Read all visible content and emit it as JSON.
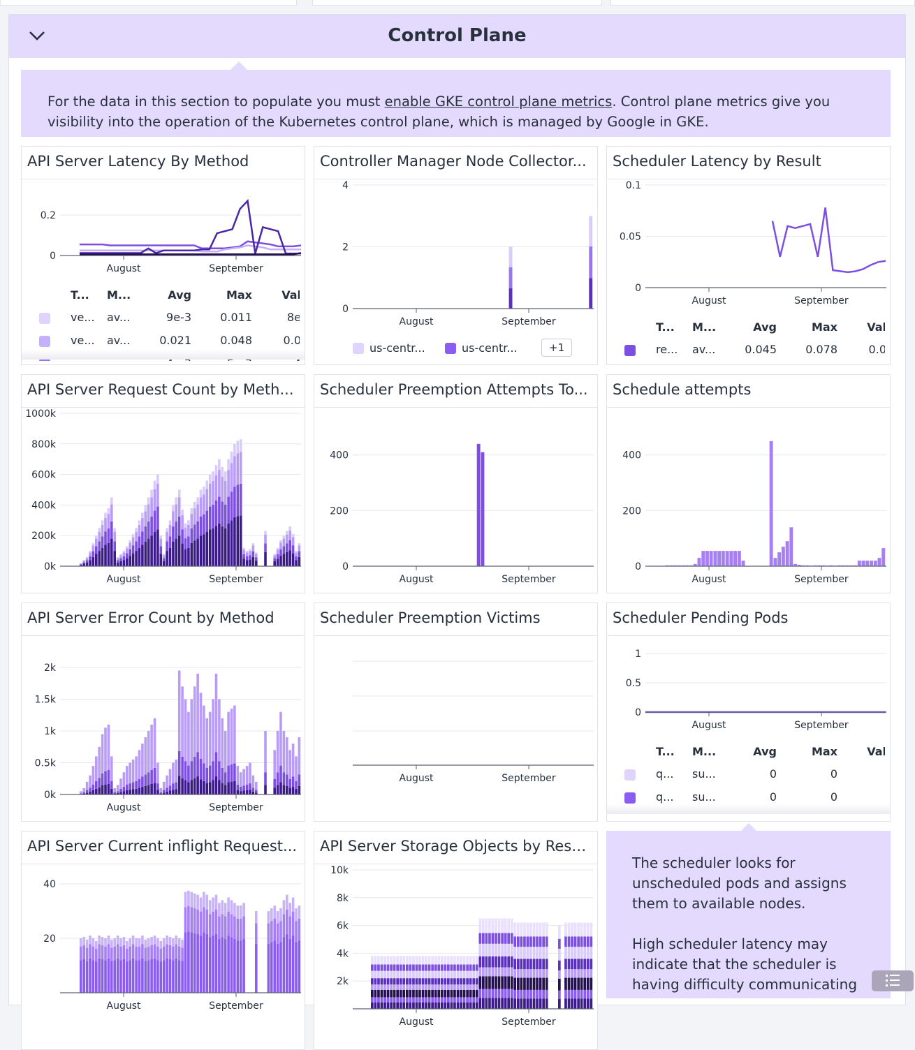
{
  "section": {
    "title": "Control Plane",
    "collapse_icon": "chevron-down-icon",
    "info_prefix": "For the data in this section to populate you must ",
    "info_link": "enable GKE control plane metrics",
    "info_suffix": ". Control plane metrics give you visibility into the operation of the Kubernetes control plane, which is managed by Google in GKE."
  },
  "colors": {
    "header_bg": "#e4dafd",
    "accent": "#7c4fe0",
    "dark": "#3b1a8a",
    "light": "#d9ccfb"
  },
  "time_ticks": [
    "August",
    "September"
  ],
  "legend_headers": [
    "T...",
    "M...",
    "Avg",
    "Max",
    "Val"
  ],
  "chart_data": [
    {
      "title": "API Server Latency By Method",
      "type": "line",
      "yticks": [
        {
          "v": 0,
          "label": "0"
        },
        {
          "v": 0.2,
          "label": "0.2"
        }
      ],
      "ylim": [
        0,
        0.28
      ],
      "series": [
        {
          "color": "#7c4fe0",
          "values": [
            0.055,
            0.055,
            0.055,
            0.055,
            0.05,
            0.05,
            0.05,
            0.05,
            0.05,
            0.05,
            0.05,
            0.05,
            0.05,
            0.05,
            0.05,
            0.05,
            0.035,
            0.035,
            0.035,
            0.035,
            0.04,
            0.045,
            0.07,
            0.065,
            0.06,
            0.055,
            0.045,
            0.045,
            0.045,
            0.05
          ]
        },
        {
          "color": "#c4b0f8",
          "values": [
            0.025,
            0.025,
            0.025,
            0.025,
            0.025,
            0.025,
            0.025,
            0.025,
            0.025,
            0.025,
            0.025,
            0.025,
            0.025,
            0.025,
            0.025,
            0.025,
            0.02,
            0.02,
            0.02,
            0.03,
            0.035,
            0.04,
            0.05,
            0.045,
            0.04,
            0.03,
            0.03,
            0.03,
            0.03,
            0.03
          ]
        },
        {
          "color": "#4a25a8",
          "values": [
            0.012,
            0.012,
            0.012,
            0.012,
            0.012,
            0.012,
            0.012,
            0.012,
            0.012,
            0.035,
            0.012,
            0.025,
            0.025,
            0.025,
            0.025,
            0.025,
            0.03,
            0.03,
            0.11,
            0.12,
            0.13,
            0.23,
            0.27,
            0.01,
            0.14,
            0.13,
            0.12,
            0.01,
            0.01,
            0.01
          ]
        },
        {
          "color": "#24104f",
          "values": [
            0.006,
            0.006,
            0.006,
            0.006,
            0.006,
            0.006,
            0.006,
            0.006,
            0.006,
            0.006,
            0.006,
            0.006,
            0.006,
            0.006,
            0.006,
            0.006,
            0.006,
            0.006,
            0.006,
            0.006,
            0.006,
            0.006,
            0.006,
            0.006,
            0.006,
            0.006,
            0.006,
            0.006,
            0.006,
            0.012
          ]
        }
      ],
      "legend": [
        {
          "color": "#e0d4fc",
          "t": "ve...",
          "m": "av...",
          "avg": "9e-3",
          "max": "0.011",
          "val": "8e"
        },
        {
          "color": "#c4b0f8",
          "t": "ve...",
          "m": "av...",
          "avg": "0.021",
          "max": "0.048",
          "val": "0.0"
        },
        {
          "color": "#9b74f0",
          "t": "...",
          "m": "...",
          "avg": "4e-3",
          "max": "5e-3",
          "val": "4"
        }
      ]
    },
    {
      "title": "Controller Manager Node Collector...",
      "type": "stacked-bar",
      "yticks": [
        {
          "v": 0,
          "label": "0"
        },
        {
          "v": 2,
          "label": "2"
        },
        {
          "v": 4,
          "label": "4"
        }
      ],
      "ylim": [
        0,
        4
      ],
      "totals": [
        0,
        0,
        0,
        0,
        0,
        0,
        0,
        0,
        0,
        0,
        0,
        0,
        0,
        0,
        0,
        0,
        0,
        0,
        0,
        0,
        0,
        0,
        0,
        0,
        0,
        0,
        0,
        0,
        0,
        0,
        0,
        0,
        0,
        0,
        0,
        0,
        0,
        0,
        0,
        2,
        0,
        0,
        0,
        0,
        0,
        0,
        0,
        0,
        0,
        0,
        0,
        0,
        0,
        0,
        0,
        0,
        0,
        0,
        0,
        3
      ],
      "shares": [
        0.33,
        0.34,
        0.33
      ],
      "colors": [
        "#5a2fc0",
        "#9b74f0",
        "#d9ccfb"
      ],
      "legend_chips": [
        {
          "color": "#e0d4fc",
          "label": "us-centr..."
        },
        {
          "color": "#8b5cf0",
          "label": "us-centr..."
        }
      ],
      "more_label": "+1"
    },
    {
      "title": "Scheduler Latency by Result",
      "type": "line",
      "yticks": [
        {
          "v": 0,
          "label": "0"
        },
        {
          "v": 0.05,
          "label": "0.05"
        },
        {
          "v": 0.1,
          "label": "0.1"
        }
      ],
      "ylim": [
        0,
        0.1
      ],
      "series": [
        {
          "color": "#7c4fe0",
          "values": [
            0.065,
            0.03,
            0.06,
            0.058,
            0.06,
            0.062,
            0.03,
            0.078,
            0.017,
            0.016,
            0.015,
            0.016,
            0.018,
            0.022,
            0.025,
            0.026
          ]
        }
      ],
      "legend": [
        {
          "color": "#7c4fe0",
          "t": "re...",
          "m": "av...",
          "avg": "0.045",
          "max": "0.078",
          "val": "0.0"
        }
      ]
    },
    {
      "title": "API Server Request Count by Meth...",
      "type": "stacked-bar",
      "yticks": [
        {
          "v": 0,
          "label": "0k"
        },
        {
          "v": 200,
          "label": "200k"
        },
        {
          "v": 400,
          "label": "400k"
        },
        {
          "v": 600,
          "label": "600k"
        },
        {
          "v": 800,
          "label": "800k"
        },
        {
          "v": 1000,
          "label": "1000k"
        }
      ],
      "ylim": [
        0,
        1000
      ],
      "totals": [
        20,
        40,
        60,
        100,
        150,
        200,
        250,
        300,
        350,
        380,
        450,
        250,
        60,
        80,
        100,
        130,
        170,
        210,
        250,
        300,
        350,
        400,
        450,
        500,
        560,
        600,
        200,
        80,
        250,
        300,
        400,
        450,
        500,
        370,
        280,
        300,
        380,
        420,
        450,
        500,
        520,
        560,
        600,
        620,
        660,
        700,
        650,
        620,
        700,
        750,
        800,
        820,
        830,
        120,
        100,
        110,
        150,
        90,
        null,
        null,
        230,
        null,
        null,
        80,
        120,
        170,
        200,
        230,
        260,
        210,
        100,
        150
      ],
      "shares": [
        0.4,
        0.25,
        0.25,
        0.1
      ],
      "colors": [
        "#3b1a8a",
        "#7c4fe0",
        "#b89cf5",
        "#d9ccfb"
      ]
    },
    {
      "title": "Scheduler Preemption Attempts To...",
      "type": "bar",
      "yticks": [
        {
          "v": 0,
          "label": "0"
        },
        {
          "v": 200,
          "label": "200"
        },
        {
          "v": 400,
          "label": "400"
        }
      ],
      "ylim": [
        0,
        550
      ],
      "totals": [
        0,
        0,
        0,
        0,
        0,
        0,
        0,
        0,
        0,
        0,
        0,
        0,
        0,
        0,
        0,
        0,
        0,
        0,
        0,
        0,
        0,
        0,
        0,
        0,
        0,
        0,
        0,
        0,
        0,
        0,
        0,
        440,
        410,
        0,
        0,
        0,
        0,
        0,
        0,
        0,
        0,
        0,
        0,
        0,
        0,
        0,
        0,
        0,
        0,
        0,
        0,
        0,
        0,
        0,
        0,
        0,
        0,
        0,
        0,
        0
      ],
      "shares": [
        1
      ],
      "colors": [
        "#7c4fe0"
      ]
    },
    {
      "title": "Schedule attempts",
      "type": "bar",
      "yticks": [
        {
          "v": 0,
          "label": "0"
        },
        {
          "v": 200,
          "label": "200"
        },
        {
          "v": 400,
          "label": "400"
        }
      ],
      "ylim": [
        0,
        550
      ],
      "totals": [
        0,
        0,
        0,
        0,
        0,
        3,
        3,
        3,
        3,
        3,
        3,
        3,
        8,
        30,
        55,
        55,
        55,
        55,
        55,
        55,
        55,
        55,
        55,
        55,
        20,
        0,
        0,
        0,
        0,
        0,
        0,
        450,
        30,
        50,
        70,
        90,
        140,
        8,
        5,
        3,
        3,
        2,
        3,
        3,
        3,
        2,
        3,
        2,
        3,
        3,
        3,
        3,
        3,
        20,
        20,
        20,
        20,
        20,
        30,
        65
      ],
      "shares": [
        1
      ],
      "colors": [
        "#a57ff3"
      ]
    },
    {
      "title": "API Server Error Count by Method",
      "type": "stacked-bar",
      "yticks": [
        {
          "v": 0,
          "label": "0k"
        },
        {
          "v": 0.5,
          "label": "0.5k"
        },
        {
          "v": 1,
          "label": "1k"
        },
        {
          "v": 1.5,
          "label": "1.5k"
        },
        {
          "v": 2,
          "label": "2k"
        }
      ],
      "ylim": [
        0,
        2.4
      ],
      "totals": [
        0.05,
        0.1,
        0.2,
        0.3,
        0.45,
        0.6,
        0.75,
        0.95,
        1.05,
        1.1,
        0.6,
        0.1,
        0.15,
        0.25,
        0.35,
        0.45,
        0.5,
        0.55,
        0.6,
        0.7,
        0.8,
        0.9,
        1.0,
        1.1,
        1.2,
        0.5,
        0.1,
        0.2,
        0.3,
        0.4,
        0.5,
        0.55,
        1.95,
        1.7,
        1.5,
        1.3,
        1.5,
        1.7,
        1.9,
        1.6,
        1.4,
        1.2,
        1.3,
        1.5,
        1.9,
        1.5,
        1.2,
        1.0,
        1.3,
        1.35,
        1.4,
        0.45,
        0.35,
        0.4,
        0.45,
        0.5,
        0.3,
        0.2,
        null,
        null,
        1.0,
        null,
        null,
        0.7,
        1.0,
        1.3,
        1.0,
        0.9,
        0.7,
        0.8,
        0.6,
        0.9
      ],
      "shares": [
        0.15,
        0.2,
        0.65
      ],
      "colors": [
        "#3b1a8a",
        "#7c4fe0",
        "#b89cf5"
      ]
    },
    {
      "title": "Scheduler Preemption Victims",
      "type": "line",
      "yticks": [],
      "ylim": [
        0,
        1
      ],
      "series": []
    },
    {
      "title": "Scheduler Pending Pods",
      "type": "line",
      "yticks": [
        {
          "v": 0,
          "label": "0"
        },
        {
          "v": 0.5,
          "label": "0.5"
        },
        {
          "v": 1,
          "label": "1"
        }
      ],
      "ylim": [
        0,
        1
      ],
      "series": [
        {
          "color": "#7c4fe0",
          "values": [
            0,
            0
          ]
        }
      ],
      "legend": [
        {
          "color": "#e0d4fc",
          "t": "q...",
          "m": "su...",
          "avg": "0",
          "max": "0",
          "val": ""
        },
        {
          "color": "#8b5cf0",
          "t": "q...",
          "m": "su...",
          "avg": "0",
          "max": "0",
          "val": ""
        },
        {
          "color": "#5a2fc0",
          "t": "q...",
          "m": "su...",
          "avg": "0",
          "max": "0",
          "val": ""
        }
      ]
    },
    {
      "title": "API Server Current inflight Request...",
      "type": "stacked-bar",
      "yticks": [
        {
          "v": 20,
          "label": "20"
        },
        {
          "v": 40,
          "label": "40"
        }
      ],
      "ylim": [
        0,
        40
      ],
      "totals": [
        20,
        20.5,
        19.5,
        21,
        20,
        19,
        21,
        20.5,
        20,
        21,
        19.5,
        20,
        21,
        20,
        20.5,
        19,
        20,
        21,
        20,
        20,
        21,
        19.5,
        20,
        20.5,
        21,
        20,
        19,
        20,
        21,
        20.5,
        20,
        21,
        20,
        19.5,
        37,
        37.5,
        37,
        36.5,
        36,
        35,
        37,
        36,
        34,
        35,
        36,
        33,
        34,
        33,
        35,
        34,
        33,
        32,
        32,
        33,
        null,
        null,
        null,
        30,
        null,
        null,
        null,
        30,
        31,
        32,
        30,
        31,
        34,
        36,
        33,
        35,
        31,
        32
      ],
      "shares": [
        0.6,
        0.25,
        0.15
      ],
      "colors": [
        "#8b5cf0",
        "#a57ff3",
        "#c9b3f8"
      ]
    },
    {
      "title": "API Server Storage Objects by Reso...",
      "type": "stacked-bar",
      "yticks": [
        {
          "v": 2,
          "label": "2k"
        },
        {
          "v": 4,
          "label": "4k"
        },
        {
          "v": 6,
          "label": "6k"
        },
        {
          "v": 8,
          "label": "8k"
        },
        {
          "v": 10,
          "label": "10k"
        }
      ],
      "ylim": [
        0,
        10
      ],
      "totals": [
        3.8,
        3.8,
        3.8,
        3.8,
        3.8,
        3.8,
        3.8,
        3.8,
        3.8,
        3.8,
        3.8,
        3.8,
        3.8,
        3.8,
        3.8,
        3.8,
        3.8,
        3.8,
        3.8,
        3.8,
        3.8,
        3.8,
        3.8,
        3.8,
        3.8,
        3.8,
        3.8,
        3.8,
        3.8,
        3.8,
        3.8,
        3.8,
        3.8,
        3.8,
        6.5,
        6.5,
        6.5,
        6.5,
        6.5,
        6.5,
        6.5,
        6.5,
        6.5,
        6.5,
        6.5,
        6.2,
        6.2,
        6.2,
        6.2,
        6.2,
        6.2,
        6.2,
        6.2,
        6.2,
        6.2,
        6.2,
        null,
        null,
        null,
        6.0,
        null,
        6.2,
        6.2,
        6.2,
        6.2,
        6.2,
        6.2,
        6.2,
        6.2,
        6.2
      ],
      "shares": [
        0.12,
        0.1,
        0.14,
        0.1,
        0.12,
        0.14,
        0.12,
        0.16
      ],
      "colors": [
        "#3b1a8a",
        "#8b5cf0",
        "#24104f",
        "#b89cf5",
        "#5a2fc0",
        "#d9ccfb",
        "#7c4fe0",
        "#e8e0fd"
      ]
    }
  ],
  "scheduler_note": {
    "p1": "The scheduler looks for unscheduled pods and assigns them to available nodes.",
    "p2": "High scheduler latency may indicate that the scheduler is having difficulty communicating"
  },
  "fab_icon": "list-icon"
}
